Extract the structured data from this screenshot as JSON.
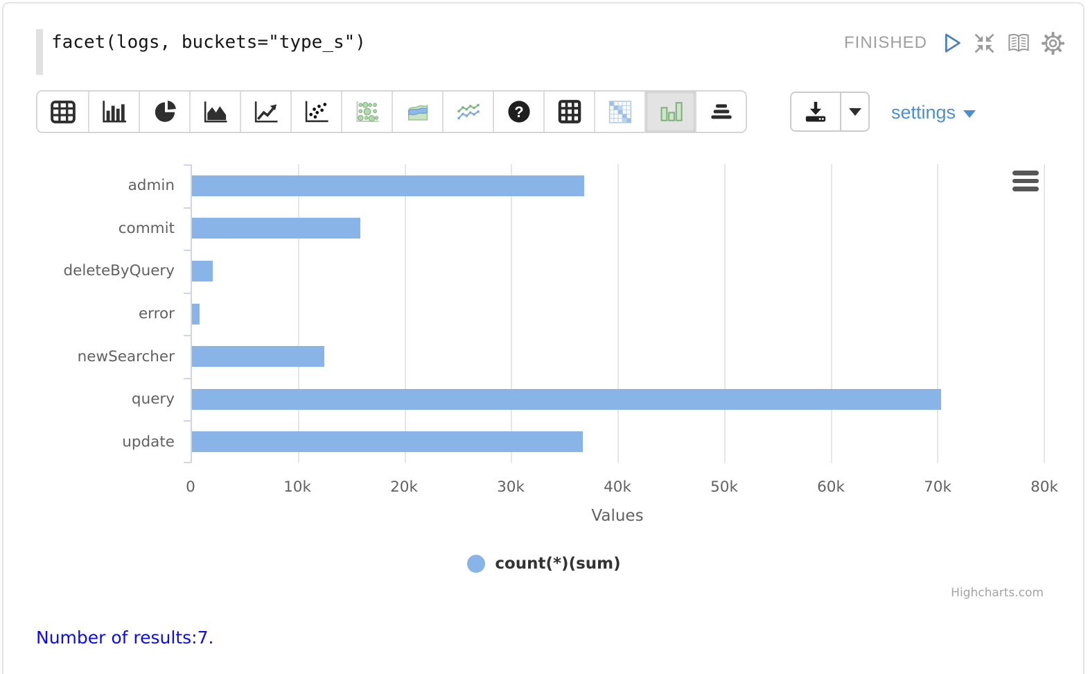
{
  "editor": {
    "code": "facet(logs, buckets=\"type_s\")"
  },
  "status": {
    "label": "FINISHED"
  },
  "controls": {
    "icons": [
      "play-icon",
      "compress-icon",
      "book-icon",
      "gear-icon"
    ]
  },
  "toolbar": {
    "buttons": [
      {
        "name": "table",
        "selected": false
      },
      {
        "name": "bar-chart",
        "selected": false
      },
      {
        "name": "pie-chart",
        "selected": false
      },
      {
        "name": "area-chart",
        "selected": false
      },
      {
        "name": "line-chart",
        "selected": false
      },
      {
        "name": "scatter-plot",
        "selected": false
      },
      {
        "name": "bubble-chart",
        "selected": false
      },
      {
        "name": "stacked-area-chart",
        "selected": false
      },
      {
        "name": "multi-series-line-chart",
        "selected": false
      },
      {
        "name": "help",
        "selected": false
      },
      {
        "name": "pivot-grid",
        "selected": false
      },
      {
        "name": "heatmap",
        "selected": false
      },
      {
        "name": "column-chart",
        "selected": true
      },
      {
        "name": "horizontal-bars",
        "selected": false
      }
    ]
  },
  "download": {
    "icon": "download-icon",
    "caret": "caret-down-icon"
  },
  "settings": {
    "label": "settings"
  },
  "chart_data": {
    "type": "bar",
    "orientation": "horizontal",
    "categories": [
      "admin",
      "commit",
      "deleteByQuery",
      "error",
      "newSearcher",
      "query",
      "update"
    ],
    "series": [
      {
        "name": "count(*)(sum)",
        "values": [
          36800,
          15800,
          1950,
          700,
          12400,
          70300,
          36700
        ]
      }
    ],
    "xlabel": "Values",
    "xlim": [
      0,
      80000
    ],
    "x_ticks": [
      "0",
      "10k",
      "20k",
      "30k",
      "40k",
      "50k",
      "60k",
      "70k",
      "80k"
    ],
    "grid": true,
    "legend_position": "bottom-center",
    "menu_icon": "hamburger-menu-icon",
    "credit": "Highcharts.com"
  },
  "footer": {
    "text": "Number of results:7."
  },
  "colors": {
    "bar": "#88b4e7",
    "axis": "#ccd6eb",
    "grid": "#e6e6e6",
    "label": "#616161",
    "legend_text": "#333333",
    "link_blue": "#4c8fce",
    "status_gray": "#9e9e9e",
    "result_blue": "#0b0bee",
    "icon_dark": "#2f2f2f",
    "play_blue": "#4a7ebb"
  }
}
